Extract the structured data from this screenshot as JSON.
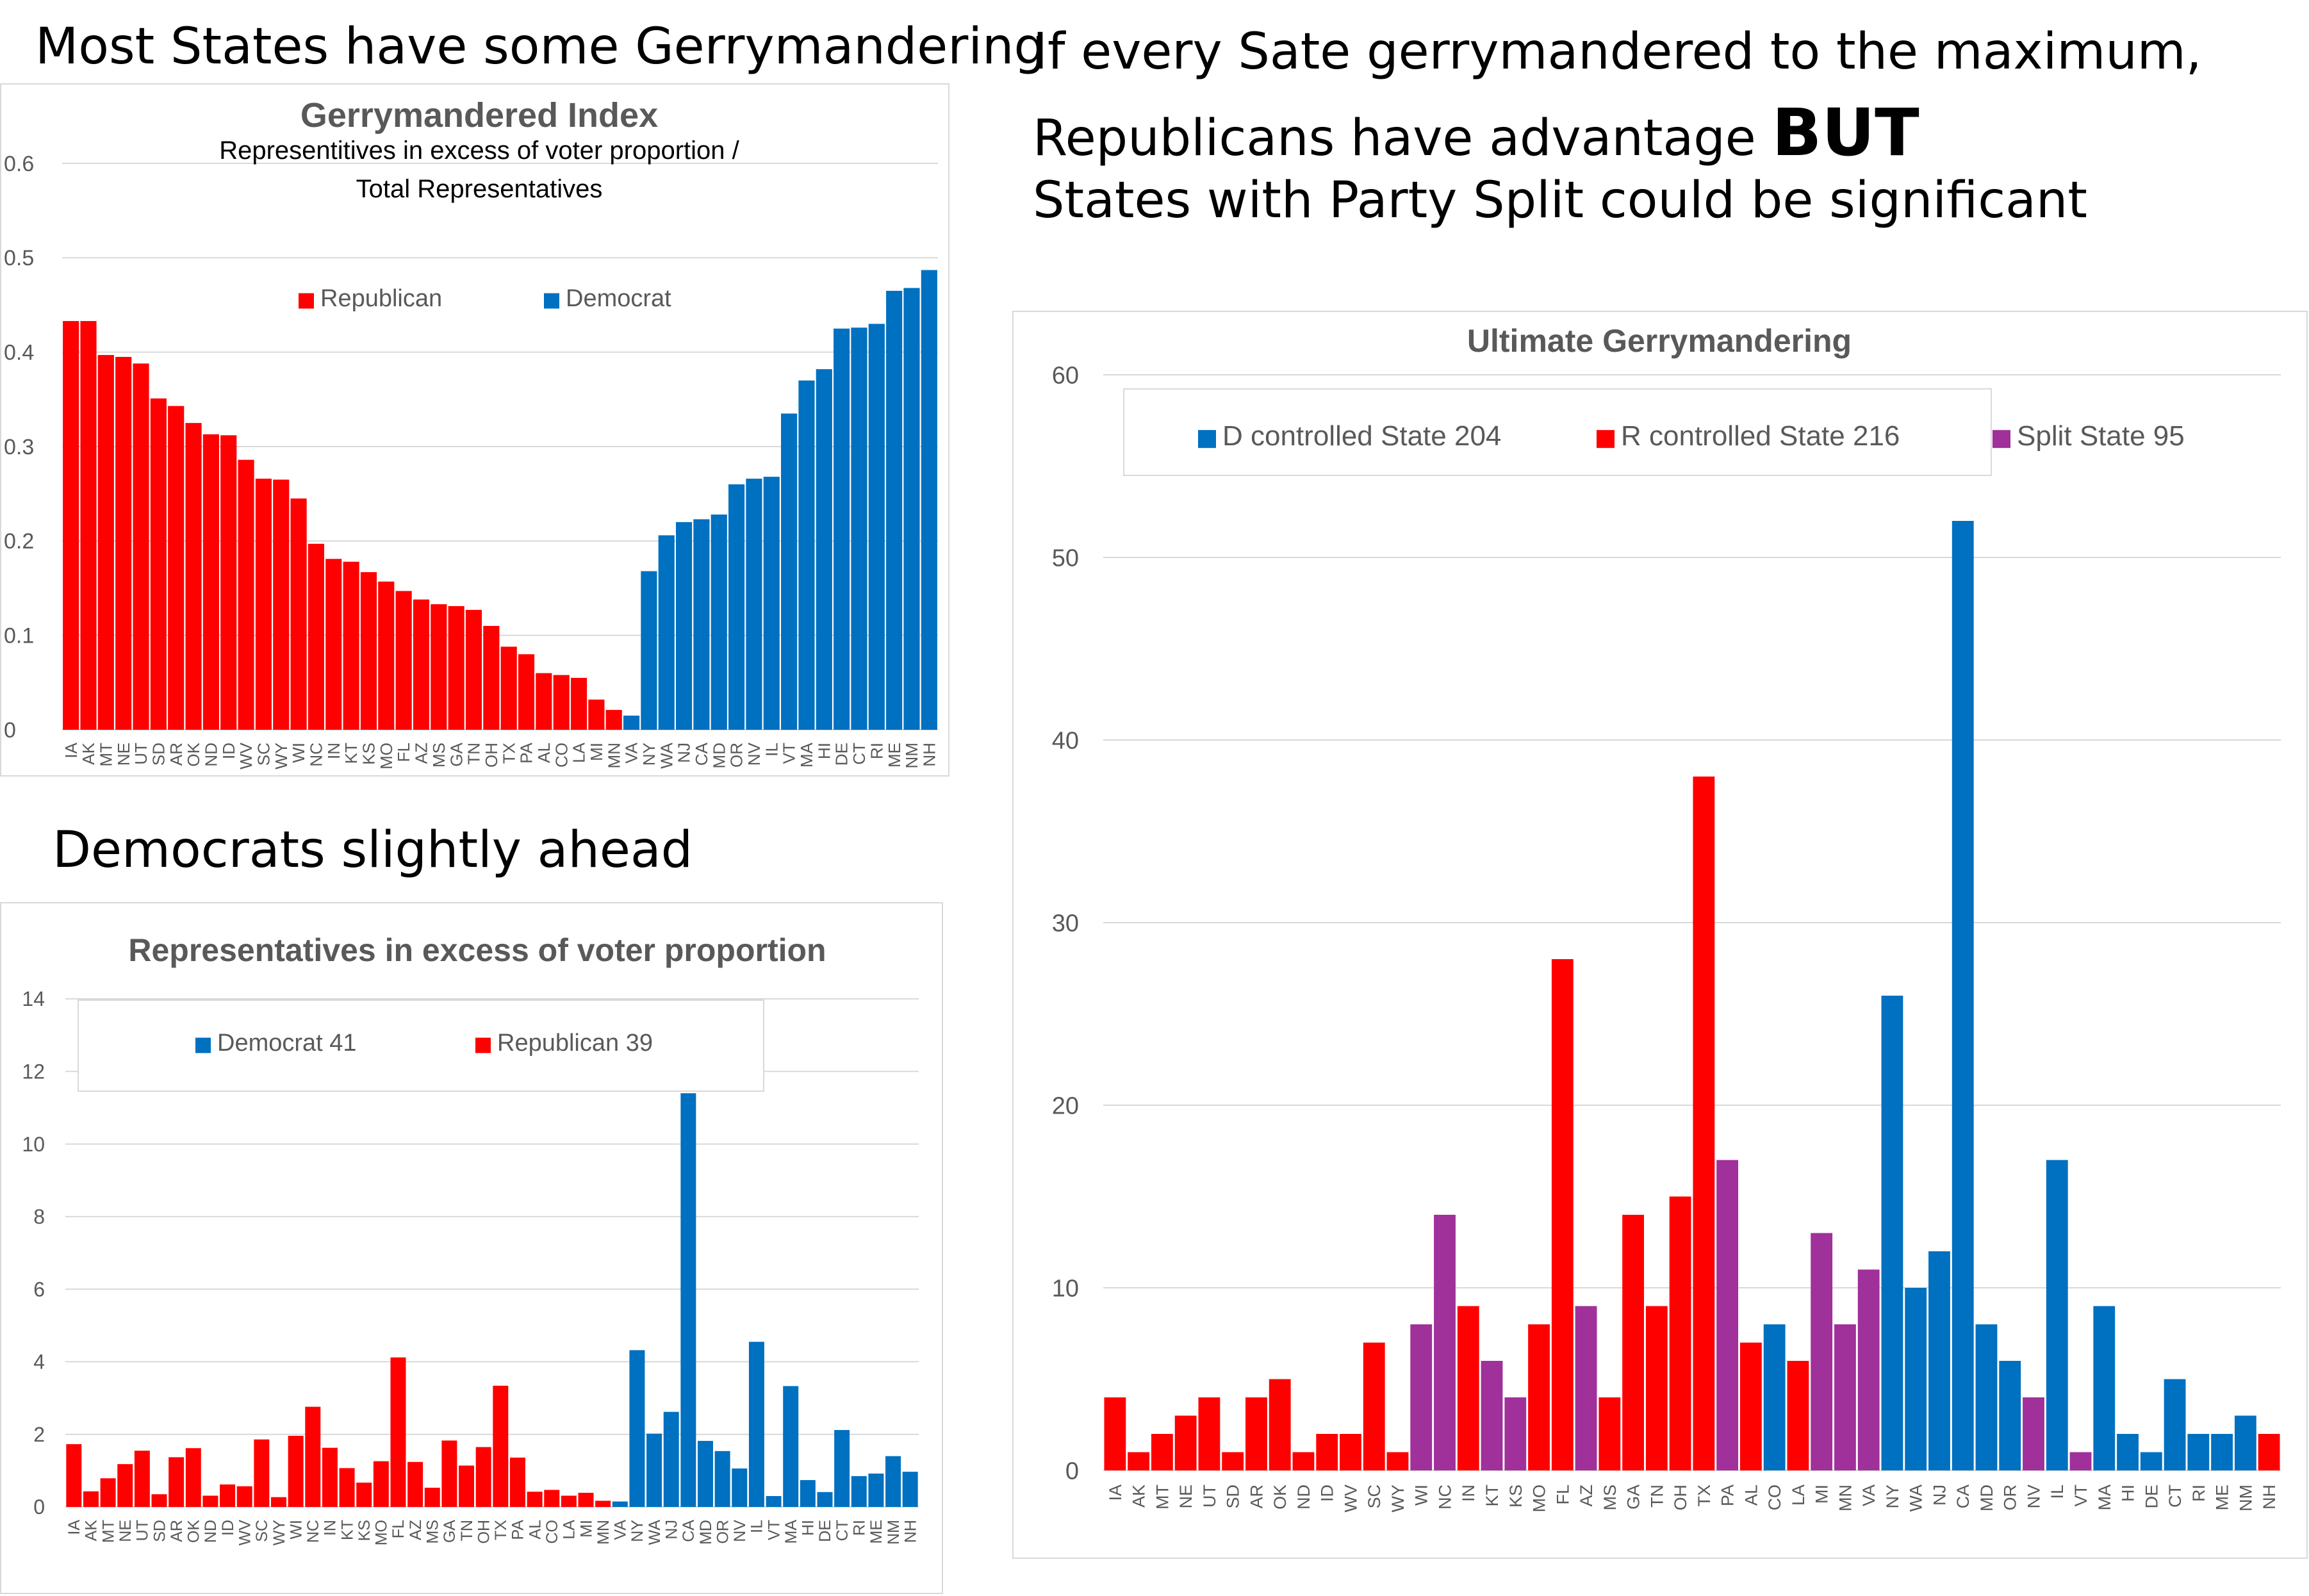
{
  "headings": {
    "top_left": "Most States have some Gerrymandering",
    "mid_left": "Democrats slightly ahead",
    "right_line1": "If every Sate gerrymandered to the maximum,",
    "right_line2_prefix": "Republicans have advantage ",
    "right_line2_emph": "BUT",
    "right_line3": "States with Party Split could be significant"
  },
  "colors": {
    "republican": "#ff0000",
    "democrat": "#0070c0",
    "split": "#a0309a",
    "grid": "#d9d9d9",
    "title": "#595959",
    "axis_text": "#595959"
  },
  "chart_data": [
    {
      "id": "gerrymandered-index",
      "type": "bar",
      "title": "Gerrymandered Index",
      "subtitle_line1": "Representitives in excess of voter proportion /",
      "subtitle_line2": "Total Representatives",
      "legend": [
        {
          "label": "Republican",
          "key": "R"
        },
        {
          "label": "Democrat",
          "key": "D"
        }
      ],
      "ylim": [
        0,
        0.6
      ],
      "yticks": [
        0,
        0.1,
        0.2,
        0.3,
        0.4,
        0.5,
        0.6
      ],
      "ytick_labels": [
        "0",
        "0.1",
        "0.2",
        "0.3",
        "0.4",
        "0.5",
        "0.6"
      ],
      "categories": [
        "IA",
        "AK",
        "MT",
        "NE",
        "UT",
        "SD",
        "AR",
        "OK",
        "ND",
        "ID",
        "WV",
        "SC",
        "WY",
        "WI",
        "NC",
        "IN",
        "KT",
        "KS",
        "MO",
        "FL",
        "AZ",
        "MS",
        "GA",
        "TN",
        "OH",
        "TX",
        "PA",
        "AL",
        "CO",
        "LA",
        "MI",
        "MN",
        "VA",
        "NY",
        "WA",
        "NJ",
        "CA",
        "MD",
        "OR",
        "NV",
        "IL",
        "VT",
        "MA",
        "HI",
        "DE",
        "CT",
        "RI",
        "ME",
        "NM",
        "NH"
      ],
      "values": [
        0.433,
        0.433,
        0.397,
        0.395,
        0.388,
        0.351,
        0.343,
        0.325,
        0.313,
        0.312,
        0.286,
        0.266,
        0.265,
        0.245,
        0.197,
        0.181,
        0.178,
        0.167,
        0.157,
        0.147,
        0.138,
        0.133,
        0.131,
        0.127,
        0.11,
        0.088,
        0.08,
        0.06,
        0.058,
        0.055,
        0.032,
        0.021,
        0.015,
        0.168,
        0.206,
        0.22,
        0.223,
        0.228,
        0.26,
        0.266,
        0.268,
        0.335,
        0.37,
        0.382,
        0.425,
        0.426,
        0.43,
        0.465,
        0.468,
        0.487
      ],
      "party": [
        "R",
        "R",
        "R",
        "R",
        "R",
        "R",
        "R",
        "R",
        "R",
        "R",
        "R",
        "R",
        "R",
        "R",
        "R",
        "R",
        "R",
        "R",
        "R",
        "R",
        "R",
        "R",
        "R",
        "R",
        "R",
        "R",
        "R",
        "R",
        "R",
        "R",
        "R",
        "R",
        "D",
        "D",
        "D",
        "D",
        "D",
        "D",
        "D",
        "D",
        "D",
        "D",
        "D",
        "D",
        "D",
        "D",
        "D",
        "D",
        "D",
        "D"
      ]
    },
    {
      "id": "excess-representatives",
      "type": "bar",
      "title": "Representatives in excess of voter proportion",
      "legend": [
        {
          "label": "Democrat 41",
          "key": "D"
        },
        {
          "label": "Republican 39",
          "key": "R"
        }
      ],
      "ylim": [
        0,
        14
      ],
      "yticks": [
        0,
        2,
        4,
        6,
        8,
        10,
        12,
        14
      ],
      "ytick_labels": [
        "0",
        "2",
        "4",
        "6",
        "8",
        "10",
        "12",
        "14"
      ],
      "categories": [
        "IA",
        "AK",
        "MT",
        "NE",
        "UT",
        "SD",
        "AR",
        "OK",
        "ND",
        "ID",
        "WV",
        "SC",
        "WY",
        "WI",
        "NC",
        "IN",
        "KT",
        "KS",
        "MO",
        "FL",
        "AZ",
        "MS",
        "GA",
        "TN",
        "OH",
        "TX",
        "PA",
        "AL",
        "CO",
        "LA",
        "MI",
        "MN",
        "VA",
        "NY",
        "WA",
        "NJ",
        "CA",
        "MD",
        "OR",
        "NV",
        "IL",
        "VT",
        "MA",
        "HI",
        "DE",
        "CT",
        "RI",
        "ME",
        "NM",
        "NH"
      ],
      "values": [
        1.73,
        0.43,
        0.79,
        1.18,
        1.55,
        0.35,
        1.37,
        1.62,
        0.31,
        0.62,
        0.57,
        1.86,
        0.27,
        1.96,
        2.76,
        1.63,
        1.07,
        0.67,
        1.26,
        4.12,
        1.24,
        0.53,
        1.83,
        1.14,
        1.65,
        3.34,
        1.36,
        0.42,
        0.47,
        0.31,
        0.39,
        0.17,
        0.15,
        4.32,
        2.02,
        2.62,
        11.4,
        1.82,
        1.54,
        1.06,
        4.55,
        0.3,
        3.33,
        0.74,
        0.41,
        2.12,
        0.85,
        0.92,
        1.4,
        0.97
      ],
      "party": [
        "R",
        "R",
        "R",
        "R",
        "R",
        "R",
        "R",
        "R",
        "R",
        "R",
        "R",
        "R",
        "R",
        "R",
        "R",
        "R",
        "R",
        "R",
        "R",
        "R",
        "R",
        "R",
        "R",
        "R",
        "R",
        "R",
        "R",
        "R",
        "R",
        "R",
        "R",
        "R",
        "D",
        "D",
        "D",
        "D",
        "D",
        "D",
        "D",
        "D",
        "D",
        "D",
        "D",
        "D",
        "D",
        "D",
        "D",
        "D",
        "D",
        "D"
      ]
    },
    {
      "id": "ultimate-gerrymandering",
      "type": "bar",
      "title": "Ultimate Gerrymandering",
      "legend": [
        {
          "label": "D controlled State 204",
          "key": "D"
        },
        {
          "label": "R controlled State 216",
          "key": "R"
        },
        {
          "label": "Split State 95",
          "key": "S"
        }
      ],
      "ylim": [
        0,
        60
      ],
      "yticks": [
        0,
        10,
        20,
        30,
        40,
        50,
        60
      ],
      "ytick_labels": [
        "0",
        "10",
        "20",
        "30",
        "40",
        "50",
        "60"
      ],
      "categories": [
        "IA",
        "AK",
        "MT",
        "NE",
        "UT",
        "SD",
        "AR",
        "OK",
        "ND",
        "ID",
        "WV",
        "SC",
        "WY",
        "WI",
        "NC",
        "IN",
        "KT",
        "KS",
        "MO",
        "FL",
        "AZ",
        "MS",
        "GA",
        "TN",
        "OH",
        "TX",
        "PA",
        "AL",
        "CO",
        "LA",
        "MI",
        "MN",
        "VA",
        "NY",
        "WA",
        "NJ",
        "CA",
        "MD",
        "OR",
        "NV",
        "IL",
        "VT",
        "MA",
        "HI",
        "DE",
        "CT",
        "RI",
        "ME",
        "NM",
        "NH"
      ],
      "values": [
        4,
        1,
        2,
        3,
        4,
        1,
        4,
        5,
        1,
        2,
        2,
        7,
        1,
        8,
        14,
        9,
        6,
        4,
        8,
        28,
        9,
        4,
        14,
        9,
        15,
        38,
        17,
        7,
        8,
        6,
        13,
        8,
        11,
        26,
        10,
        12,
        52,
        8,
        6,
        4,
        17,
        1,
        9,
        2,
        1,
        5,
        2,
        2,
        3,
        2
      ],
      "party": [
        "R",
        "R",
        "R",
        "R",
        "R",
        "R",
        "R",
        "R",
        "R",
        "R",
        "R",
        "R",
        "R",
        "S",
        "S",
        "R",
        "S",
        "S",
        "R",
        "R",
        "S",
        "R",
        "R",
        "R",
        "R",
        "R",
        "S",
        "R",
        "D",
        "R",
        "S",
        "S",
        "S",
        "D",
        "D",
        "D",
        "D",
        "D",
        "D",
        "S",
        "D",
        "S",
        "D",
        "D",
        "D",
        "D",
        "D",
        "D",
        "D",
        "R"
      ]
    }
  ]
}
